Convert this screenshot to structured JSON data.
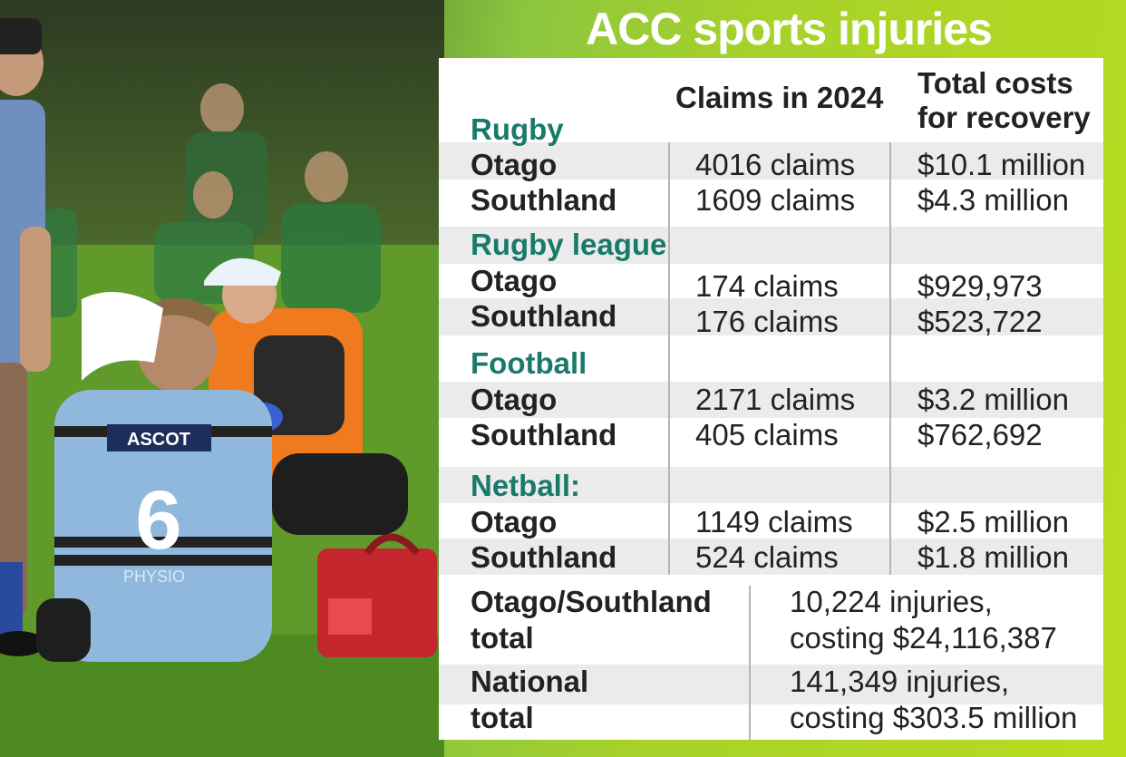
{
  "title": "ACC sports injuries",
  "headers": {
    "claims": "Claims in 2024",
    "costs_line1": "Total costs",
    "costs_line2": "for recovery"
  },
  "sections": [
    {
      "name": "Rugby",
      "rows": [
        {
          "region": "Otago",
          "claims": "4016 claims",
          "cost": "$10.1 million"
        },
        {
          "region": "Southland",
          "claims": "1609 claims",
          "cost": "$4.3 million"
        }
      ]
    },
    {
      "name": "Rugby league",
      "rows": [
        {
          "region": "Otago",
          "claims": "174 claims",
          "cost": "$929,973"
        },
        {
          "region": "Southland",
          "claims": "176 claims",
          "cost": "$523,722"
        }
      ]
    },
    {
      "name": "Football",
      "rows": [
        {
          "region": "Otago",
          "claims": "2171 claims",
          "cost": "$3.2 million"
        },
        {
          "region": "Southland",
          "claims": "405 claims",
          "cost": "$762,692"
        }
      ]
    },
    {
      "name": "Netball:",
      "rows": [
        {
          "region": "Otago",
          "claims": "1149 claims",
          "cost": "$2.5 million"
        },
        {
          "region": "Southland",
          "claims": "524 claims",
          "cost": "$1.8 million"
        }
      ]
    }
  ],
  "totals": [
    {
      "label_line1": "Otago/Southland",
      "label_line2": "total",
      "value_line1": "10,224 injuries,",
      "value_line2": "costing $24,116,387"
    },
    {
      "label_line1": "National",
      "label_line2": "total",
      "value_line1": "141,349 injuries,",
      "value_line2": "costing $303.5 million"
    }
  ],
  "photo": {
    "description_icon": "rugby-injury-photo",
    "jersey_sponsor": "ASCOT",
    "jersey_number": "6",
    "jersey_small_print": "PHYSIO",
    "colors": {
      "jersey": "#8fb8dc",
      "vest": "#f07a1e",
      "grass": "#5f9a2a"
    }
  }
}
